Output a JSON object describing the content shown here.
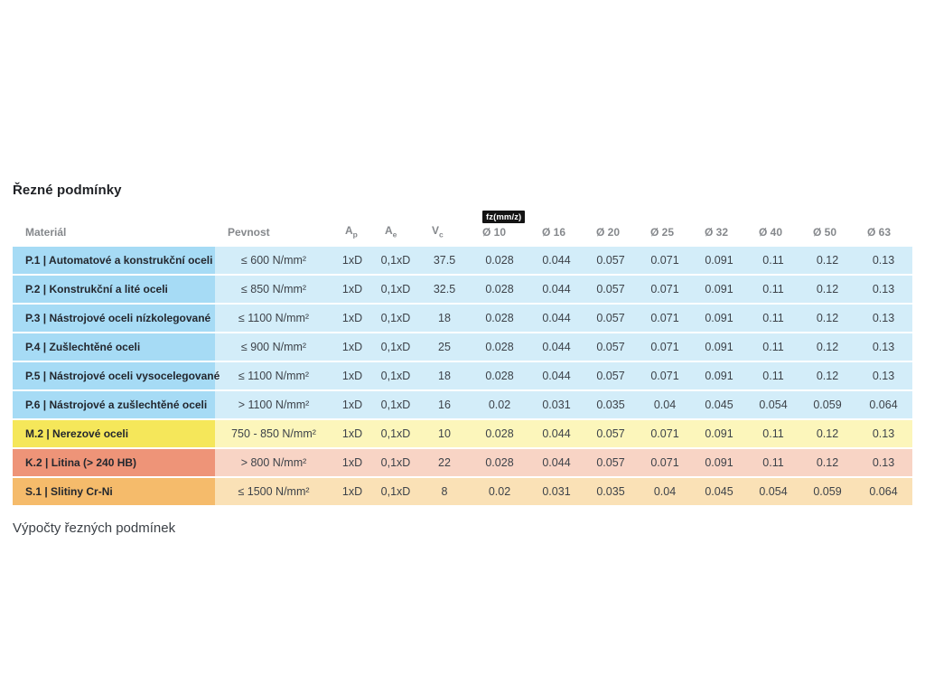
{
  "page": {
    "title": "Řezné podmínky",
    "footer_heading": "Výpočty řezných podmínek"
  },
  "table": {
    "fz_badge": "fz(mm/z)",
    "columns": [
      {
        "key": "material",
        "label": "Materiál"
      },
      {
        "key": "pevnost",
        "label": "Pevnost"
      },
      {
        "key": "ap",
        "label": "A",
        "sub": "p"
      },
      {
        "key": "ae",
        "label": "A",
        "sub": "e"
      },
      {
        "key": "vc",
        "label": "V",
        "sub": "c"
      },
      {
        "key": "d10",
        "label": "Ø 10",
        "badge": true
      },
      {
        "key": "d16",
        "label": "Ø 16"
      },
      {
        "key": "d20",
        "label": "Ø 20"
      },
      {
        "key": "d25",
        "label": "Ø 25"
      },
      {
        "key": "d32",
        "label": "Ø 32"
      },
      {
        "key": "d40",
        "label": "Ø 40"
      },
      {
        "key": "d50",
        "label": "Ø 50"
      },
      {
        "key": "d63",
        "label": "Ø 63"
      }
    ],
    "row_styles": {
      "blue": {
        "material_cell": "#a6dbf5",
        "row": "#d3edf9"
      },
      "yellow": {
        "material_cell": "#f5e75a",
        "row": "#fcf6bb"
      },
      "salmon": {
        "material_cell": "#ee9478",
        "row": "#f8d4c5"
      },
      "orange": {
        "material_cell": "#f5bb6b",
        "row": "#fae1b6"
      }
    },
    "rows": [
      {
        "style": "blue",
        "material": "P.1 | Automatové a konstrukční oceli",
        "pevnost": "≤ 600 N/mm²",
        "ap": "1xD",
        "ae": "0,1xD",
        "vc": "37.5",
        "fz": [
          "0.028",
          "0.044",
          "0.057",
          "0.071",
          "0.091",
          "0.11",
          "0.12",
          "0.13"
        ]
      },
      {
        "style": "blue",
        "material": "P.2 | Konstrukční a lité oceli",
        "pevnost": "≤ 850 N/mm²",
        "ap": "1xD",
        "ae": "0,1xD",
        "vc": "32.5",
        "fz": [
          "0.028",
          "0.044",
          "0.057",
          "0.071",
          "0.091",
          "0.11",
          "0.12",
          "0.13"
        ]
      },
      {
        "style": "blue",
        "material": "P.3 | Nástrojové oceli nízkolegované",
        "pevnost": "≤ 1100 N/mm²",
        "ap": "1xD",
        "ae": "0,1xD",
        "vc": "18",
        "fz": [
          "0.028",
          "0.044",
          "0.057",
          "0.071",
          "0.091",
          "0.11",
          "0.12",
          "0.13"
        ]
      },
      {
        "style": "blue",
        "material": "P.4 | Zušlechtěné oceli",
        "pevnost": "≤ 900 N/mm²",
        "ap": "1xD",
        "ae": "0,1xD",
        "vc": "25",
        "fz": [
          "0.028",
          "0.044",
          "0.057",
          "0.071",
          "0.091",
          "0.11",
          "0.12",
          "0.13"
        ]
      },
      {
        "style": "blue",
        "material": "P.5 | Nástrojové oceli vysocelegované",
        "pevnost": "≤ 1100 N/mm²",
        "ap": "1xD",
        "ae": "0,1xD",
        "vc": "18",
        "fz": [
          "0.028",
          "0.044",
          "0.057",
          "0.071",
          "0.091",
          "0.11",
          "0.12",
          "0.13"
        ]
      },
      {
        "style": "blue",
        "material": "P.6 | Nástrojové a zušlechtěné oceli",
        "pevnost": "> 1100 N/mm²",
        "ap": "1xD",
        "ae": "0,1xD",
        "vc": "16",
        "fz": [
          "0.02",
          "0.031",
          "0.035",
          "0.04",
          "0.045",
          "0.054",
          "0.059",
          "0.064"
        ]
      },
      {
        "style": "yellow",
        "material": "M.2 | Nerezové oceli",
        "pevnost": "750 - 850 N/mm²",
        "ap": "1xD",
        "ae": "0,1xD",
        "vc": "10",
        "fz": [
          "0.028",
          "0.044",
          "0.057",
          "0.071",
          "0.091",
          "0.11",
          "0.12",
          "0.13"
        ]
      },
      {
        "style": "salmon",
        "material": "K.2 | Litina (> 240 HB)",
        "pevnost": "> 800 N/mm²",
        "ap": "1xD",
        "ae": "0,1xD",
        "vc": "22",
        "fz": [
          "0.028",
          "0.044",
          "0.057",
          "0.071",
          "0.091",
          "0.11",
          "0.12",
          "0.13"
        ]
      },
      {
        "style": "orange",
        "material": "S.1 | Slitiny Cr-Ni",
        "pevnost": "≤ 1500 N/mm²",
        "ap": "1xD",
        "ae": "0,1xD",
        "vc": "8",
        "fz": [
          "0.02",
          "0.031",
          "0.035",
          "0.04",
          "0.045",
          "0.054",
          "0.059",
          "0.064"
        ]
      }
    ]
  },
  "colors": {
    "badge_bg": "#141414",
    "badge_text": "#ffffff",
    "header_text": "#85888c",
    "body_text": "#3d4249"
  }
}
